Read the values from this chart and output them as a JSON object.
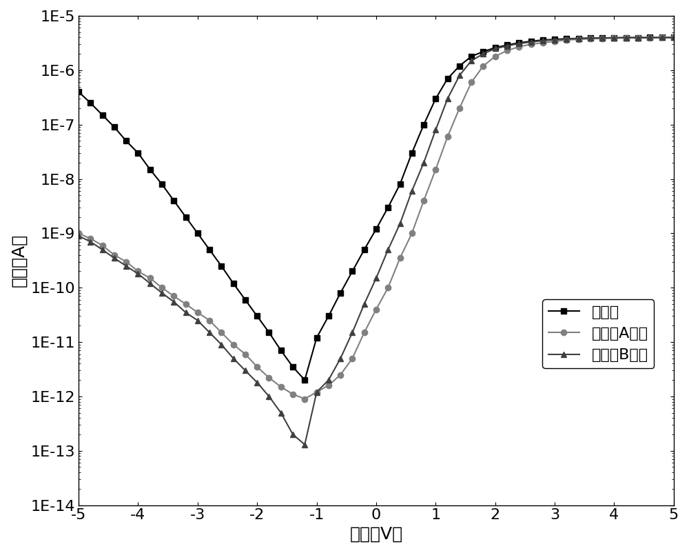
{
  "xlabel": "电压（V）",
  "ylabel": "电流（A）",
  "xlim": [
    -5,
    5
  ],
  "ylim_log": [
    -14,
    -5
  ],
  "background_color": "#ffffff",
  "legend_labels": [
    "未钝化",
    "钝化液A处理",
    "钝化液B处理"
  ],
  "series1_color": "#000000",
  "series2_color": "#808080",
  "series3_color": "#404040",
  "series1_marker": "s",
  "series2_marker": "o",
  "series3_marker": "^",
  "xlabel_fontsize": 18,
  "ylabel_fontsize": 18,
  "tick_fontsize": 16,
  "legend_fontsize": 16,
  "series1_x": [
    -5.0,
    -4.8,
    -4.6,
    -4.4,
    -4.2,
    -4.0,
    -3.8,
    -3.6,
    -3.4,
    -3.2,
    -3.0,
    -2.8,
    -2.6,
    -2.4,
    -2.2,
    -2.0,
    -1.8,
    -1.6,
    -1.4,
    -1.2,
    -1.0,
    -0.8,
    -0.6,
    -0.4,
    -0.2,
    0.0,
    0.2,
    0.4,
    0.6,
    0.8,
    1.0,
    1.2,
    1.4,
    1.6,
    1.8,
    2.0,
    2.2,
    2.4,
    2.6,
    2.8,
    3.0,
    3.2,
    3.4,
    3.6,
    3.8,
    4.0,
    4.2,
    4.4,
    4.6,
    4.8,
    5.0
  ],
  "series1_y": [
    4e-07,
    2.5e-07,
    1.5e-07,
    9e-08,
    5e-08,
    3e-08,
    1.5e-08,
    8e-09,
    4e-09,
    2e-09,
    1e-09,
    5e-10,
    2.5e-10,
    1.2e-10,
    6e-11,
    3e-11,
    1.5e-11,
    7e-12,
    3.5e-12,
    2e-12,
    1.2e-11,
    3e-11,
    8e-11,
    2e-10,
    5e-10,
    1.2e-09,
    3e-09,
    8e-09,
    3e-08,
    1e-07,
    3e-07,
    7e-07,
    1.2e-06,
    1.8e-06,
    2.2e-06,
    2.6e-06,
    2.9e-06,
    3.2e-06,
    3.4e-06,
    3.6e-06,
    3.7e-06,
    3.8e-06,
    3.85e-06,
    3.9e-06,
    3.92e-06,
    3.95e-06,
    3.97e-06,
    3.98e-06,
    3.99e-06,
    4e-06,
    4e-06
  ],
  "series2_x": [
    -5.0,
    -4.8,
    -4.6,
    -4.4,
    -4.2,
    -4.0,
    -3.8,
    -3.6,
    -3.4,
    -3.2,
    -3.0,
    -2.8,
    -2.6,
    -2.4,
    -2.2,
    -2.0,
    -1.8,
    -1.6,
    -1.4,
    -1.2,
    -1.0,
    -0.8,
    -0.6,
    -0.4,
    -0.2,
    0.0,
    0.2,
    0.4,
    0.6,
    0.8,
    1.0,
    1.2,
    1.4,
    1.6,
    1.8,
    2.0,
    2.2,
    2.4,
    2.6,
    2.8,
    3.0,
    3.2,
    3.4,
    3.6,
    3.8,
    4.0,
    4.2,
    4.4,
    4.6,
    4.8,
    5.0
  ],
  "series2_y": [
    1e-09,
    8e-10,
    6e-10,
    4e-10,
    3e-10,
    2e-10,
    1.5e-10,
    1e-10,
    7e-11,
    5e-11,
    3.5e-11,
    2.5e-11,
    1.5e-11,
    9e-12,
    6e-12,
    3.5e-12,
    2.2e-12,
    1.5e-12,
    1.1e-12,
    9e-13,
    1.2e-12,
    1.6e-12,
    2.5e-12,
    5e-12,
    1.5e-11,
    4e-11,
    1e-10,
    3.5e-10,
    1e-09,
    4e-09,
    1.5e-08,
    6e-08,
    2e-07,
    6e-07,
    1.2e-06,
    1.8e-06,
    2.3e-06,
    2.7e-06,
    3e-06,
    3.2e-06,
    3.4e-06,
    3.6e-06,
    3.7e-06,
    3.8e-06,
    3.85e-06,
    3.9e-06,
    3.92e-06,
    3.95e-06,
    3.97e-06,
    3.99e-06,
    4e-06
  ],
  "series3_x": [
    -5.0,
    -4.8,
    -4.6,
    -4.4,
    -4.2,
    -4.0,
    -3.8,
    -3.6,
    -3.4,
    -3.2,
    -3.0,
    -2.8,
    -2.6,
    -2.4,
    -2.2,
    -2.0,
    -1.8,
    -1.6,
    -1.4,
    -1.2,
    -1.0,
    -0.8,
    -0.6,
    -0.4,
    -0.2,
    0.0,
    0.2,
    0.4,
    0.6,
    0.8,
    1.0,
    1.2,
    1.4,
    1.6,
    1.8,
    2.0,
    2.2,
    2.4,
    2.6,
    2.8,
    3.0,
    3.2,
    3.4,
    3.6,
    3.8,
    4.0,
    4.2,
    4.4,
    4.6,
    4.8,
    5.0
  ],
  "series3_y": [
    9e-10,
    7e-10,
    5e-10,
    3.5e-10,
    2.5e-10,
    1.8e-10,
    1.2e-10,
    8e-11,
    5.5e-11,
    3.5e-11,
    2.5e-11,
    1.5e-11,
    9e-12,
    5e-12,
    3e-12,
    1.8e-12,
    1e-12,
    5e-13,
    2e-13,
    1.3e-13,
    1.2e-12,
    2e-12,
    5e-12,
    1.5e-11,
    5e-11,
    1.5e-10,
    5e-10,
    1.5e-09,
    6e-09,
    2e-08,
    8e-08,
    3e-07,
    8e-07,
    1.5e-06,
    2e-06,
    2.5e-06,
    2.8e-06,
    3.1e-06,
    3.3e-06,
    3.5e-06,
    3.65e-06,
    3.75e-06,
    3.82e-06,
    3.88e-06,
    3.92e-06,
    3.95e-06,
    3.97e-06,
    3.98e-06,
    3.99e-06,
    4e-06,
    4e-06
  ]
}
